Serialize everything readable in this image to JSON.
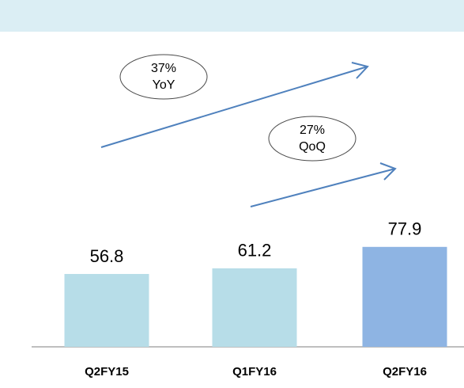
{
  "chart_data": {
    "type": "bar",
    "categories": [
      "Q2FY15",
      "Q1FY16",
      "Q2FY16"
    ],
    "values": [
      56.8,
      61.2,
      77.9
    ],
    "colors": [
      "#b7dde8",
      "#b7dde8",
      "#8eb4e3"
    ],
    "annotations": [
      {
        "lines": [
          "37%",
          "YoY"
        ]
      },
      {
        "lines": [
          "27%",
          "QoQ"
        ]
      }
    ]
  }
}
